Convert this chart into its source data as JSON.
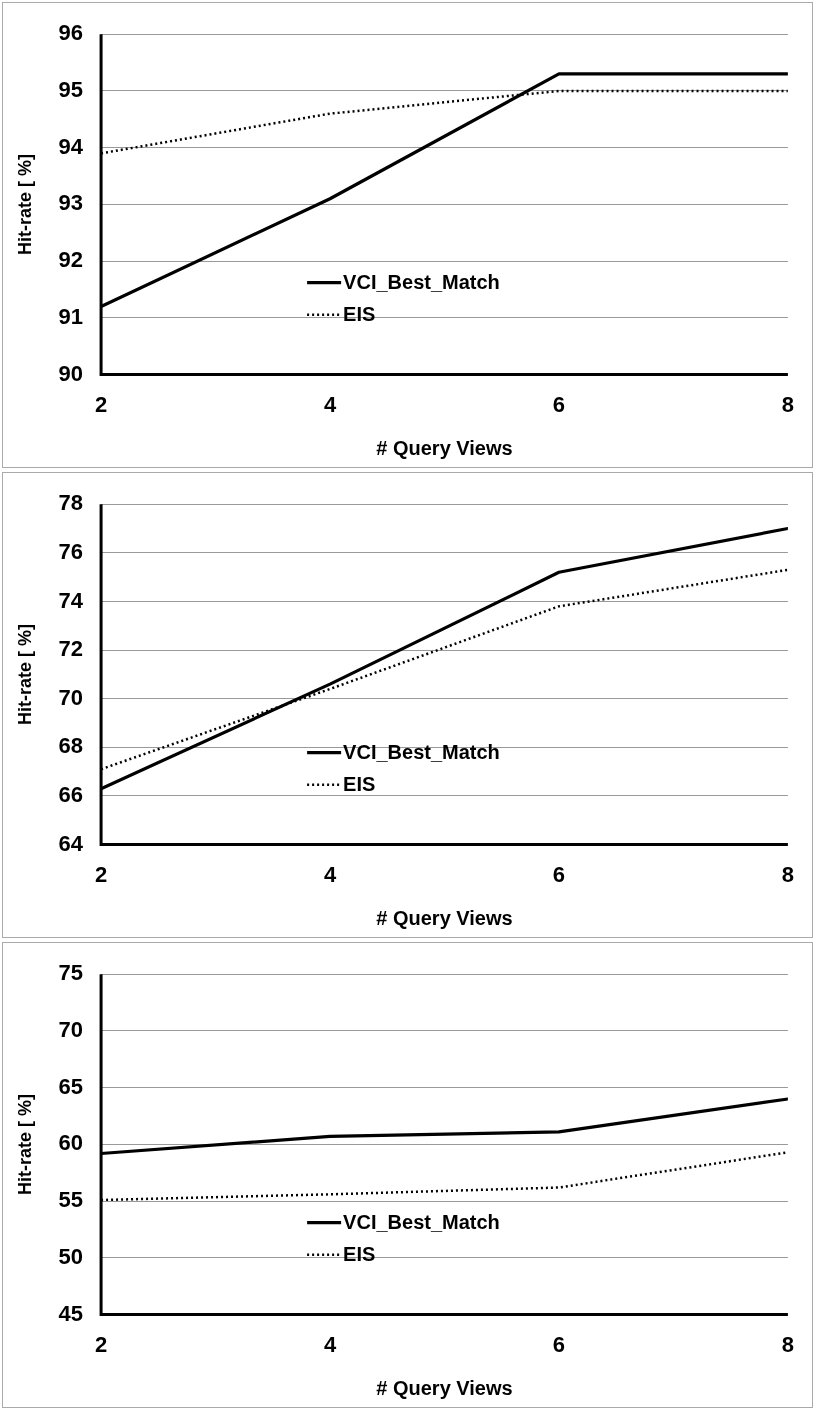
{
  "chart_data": [
    {
      "type": "line",
      "xlabel": "# Query Views",
      "ylabel": "Hit-rate [ %]",
      "x": [
        2,
        4,
        6,
        8
      ],
      "xlim": [
        2,
        8
      ],
      "xticks": [
        2,
        4,
        6,
        8
      ],
      "ylim": [
        90,
        96
      ],
      "yticks": [
        90,
        91,
        92,
        93,
        94,
        95,
        96
      ],
      "grid": "y",
      "legend": "center",
      "marker": "none",
      "series": [
        {
          "name": "VCI_Best_Match",
          "color": "#000000",
          "line_style": "solid",
          "values": [
            91.2,
            93.1,
            95.3,
            95.3
          ]
        },
        {
          "name": "EIS",
          "color": "#000000",
          "line_style": "dotted",
          "values": [
            93.9,
            94.6,
            95.0,
            95.0
          ]
        }
      ]
    },
    {
      "type": "line",
      "xlabel": "# Query Views",
      "ylabel": "Hit-rate [ %]",
      "x": [
        2,
        4,
        6,
        8
      ],
      "xlim": [
        2,
        8
      ],
      "xticks": [
        2,
        4,
        6,
        8
      ],
      "ylim": [
        64,
        78
      ],
      "yticks": [
        64,
        66,
        68,
        70,
        72,
        74,
        76,
        78
      ],
      "grid": "y",
      "legend": "center",
      "marker": "none",
      "series": [
        {
          "name": "VCI_Best_Match",
          "color": "#000000",
          "line_style": "solid",
          "values": [
            66.3,
            70.6,
            75.2,
            77.0
          ]
        },
        {
          "name": "EIS",
          "color": "#000000",
          "line_style": "dotted",
          "values": [
            67.1,
            70.4,
            73.8,
            75.3
          ]
        }
      ]
    },
    {
      "type": "line",
      "xlabel": "# Query Views",
      "ylabel": "Hit-rate [ %]",
      "x": [
        2,
        4,
        6,
        8
      ],
      "xlim": [
        2,
        8
      ],
      "xticks": [
        2,
        4,
        6,
        8
      ],
      "ylim": [
        45,
        75
      ],
      "yticks": [
        45,
        50,
        55,
        60,
        65,
        70,
        75
      ],
      "grid": "y",
      "legend": "center",
      "marker": "none",
      "series": [
        {
          "name": "VCI_Best_Match",
          "color": "#000000",
          "line_style": "solid",
          "values": [
            59.2,
            60.7,
            61.1,
            64.0
          ]
        },
        {
          "name": "EIS",
          "color": "#000000",
          "line_style": "dotted",
          "values": [
            55.1,
            55.6,
            56.2,
            59.3
          ]
        }
      ]
    }
  ]
}
